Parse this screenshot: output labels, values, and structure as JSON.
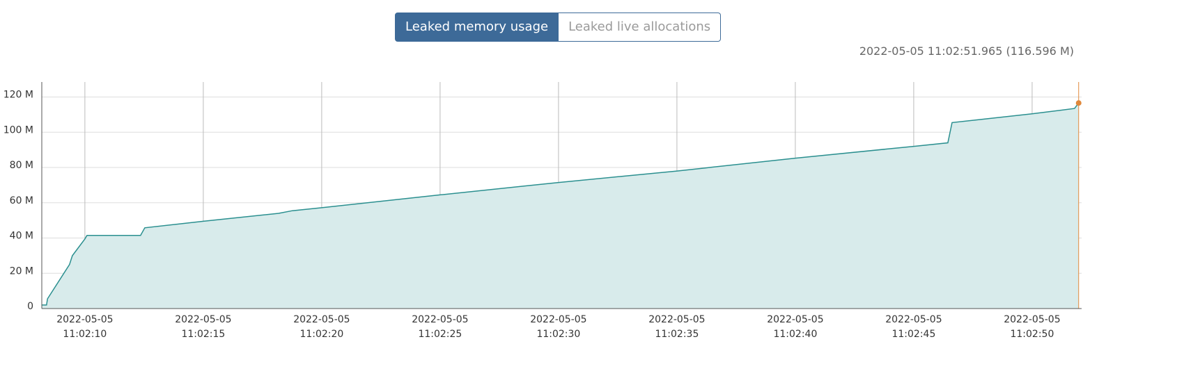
{
  "tabs": {
    "active": "Leaked memory usage",
    "inactive": "Leaked live allocations"
  },
  "readout": "2022-05-05 11:02:51.965 (116.596 M)",
  "chart_data": {
    "type": "area",
    "x": [
      "2022-05-05 11:02:08.18",
      "2022-05-05 11:02:08.38",
      "2022-05-05 11:02:08.42",
      "2022-05-05 11:02:09.35",
      "2022-05-05 11:02:09.47",
      "2022-05-05 11:02:10.00",
      "2022-05-05 11:02:10.09",
      "2022-05-05 11:02:12.35",
      "2022-05-05 11:02:12.53",
      "2022-05-05 11:02:15.00",
      "2022-05-05 11:02:18.18",
      "2022-05-05 11:02:18.76",
      "2022-05-05 11:02:20.00",
      "2022-05-05 11:02:25.00",
      "2022-05-05 11:02:30.00",
      "2022-05-05 11:02:35.00",
      "2022-05-05 11:02:40.00",
      "2022-05-05 11:02:45.00",
      "2022-05-05 11:02:46.44",
      "2022-05-05 11:02:46.62",
      "2022-05-05 11:02:50.00",
      "2022-05-05 11:02:51.79",
      "2022-05-05 11:02:51.965"
    ],
    "values": [
      2,
      2,
      5.5,
      25,
      30,
      39.5,
      41.5,
      41.5,
      45.8,
      49.5,
      54,
      55.5,
      57.2,
      64.5,
      71.5,
      78,
      85.3,
      92,
      94,
      105.5,
      110.5,
      113.5,
      116.596
    ],
    "color": "#2a8f8f",
    "fill": "#d8ebeb",
    "cursor_color": "#e0883a",
    "xlim": [
      "2022-05-05 11:02:08.18",
      "2022-05-05 11:02:52.09"
    ],
    "xticks": [
      {
        "value": "2022-05-05 11:02:10",
        "label": [
          "2022-05-05",
          "11:02:10"
        ]
      },
      {
        "value": "2022-05-05 11:02:15",
        "label": [
          "2022-05-05",
          "11:02:15"
        ]
      },
      {
        "value": "2022-05-05 11:02:20",
        "label": [
          "2022-05-05",
          "11:02:20"
        ]
      },
      {
        "value": "2022-05-05 11:02:25",
        "label": [
          "2022-05-05",
          "11:02:25"
        ]
      },
      {
        "value": "2022-05-05 11:02:30",
        "label": [
          "2022-05-05",
          "11:02:30"
        ]
      },
      {
        "value": "2022-05-05 11:02:35",
        "label": [
          "2022-05-05",
          "11:02:35"
        ]
      },
      {
        "value": "2022-05-05 11:02:40",
        "label": [
          "2022-05-05",
          "11:02:40"
        ]
      },
      {
        "value": "2022-05-05 11:02:45",
        "label": [
          "2022-05-05",
          "11:02:45"
        ]
      },
      {
        "value": "2022-05-05 11:02:50",
        "label": [
          "2022-05-05",
          "11:02:50"
        ]
      }
    ],
    "ylim": [
      0,
      128.5
    ],
    "yticks": [
      0,
      {
        "value": 20,
        "label": "20 M"
      },
      {
        "value": 40,
        "label": "40 M"
      },
      {
        "value": 60,
        "label": "60 M"
      },
      {
        "value": 80,
        "label": "80 M"
      },
      {
        "value": 100,
        "label": "100 M"
      },
      {
        "value": 120,
        "label": "120 M"
      }
    ],
    "grid": true
  }
}
